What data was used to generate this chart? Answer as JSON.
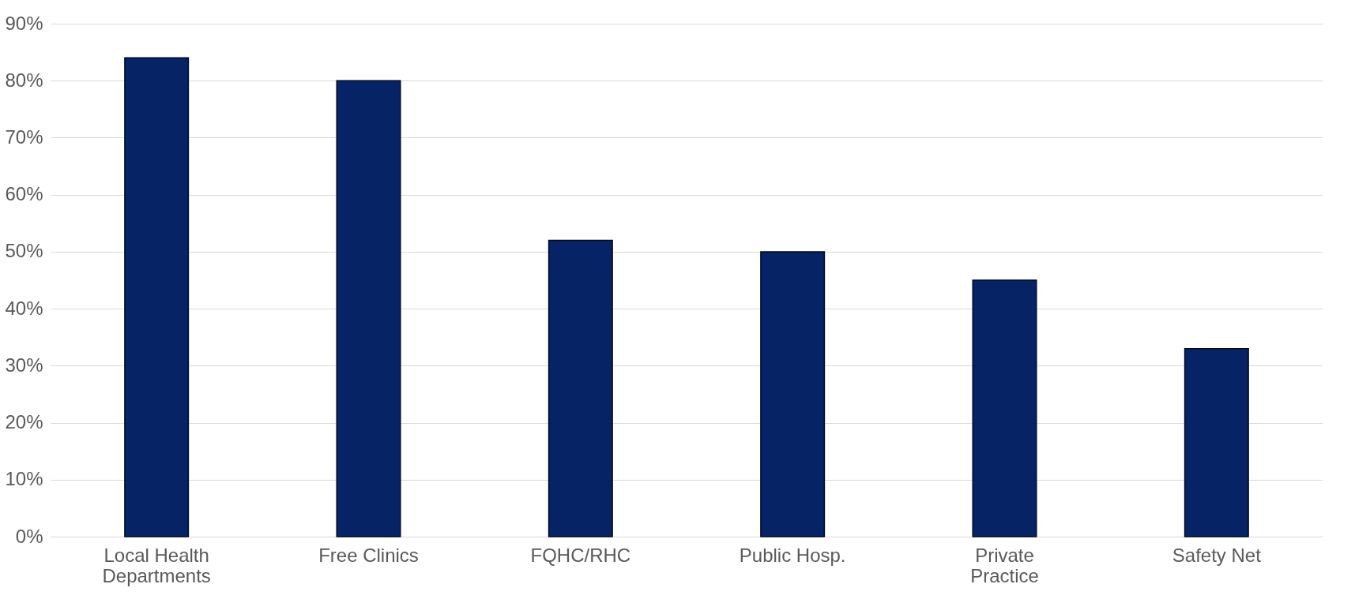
{
  "chart_data": {
    "type": "bar",
    "categories": [
      "Local Health Departments",
      "Free Clinics",
      "FQHC/RHC",
      "Public Hosp.",
      "Private Practice",
      "Safety Net"
    ],
    "values": [
      84,
      80,
      52,
      50,
      45,
      33
    ],
    "color": "#062366",
    "ylim": [
      0,
      90
    ],
    "yticks": [
      {
        "value": 0,
        "label": "0%"
      },
      {
        "value": 10,
        "label": "10%"
      },
      {
        "value": 20,
        "label": "20%"
      },
      {
        "value": 30,
        "label": "30%"
      },
      {
        "value": 40,
        "label": "40%"
      },
      {
        "value": 50,
        "label": "50%"
      },
      {
        "value": 60,
        "label": "60%"
      },
      {
        "value": 70,
        "label": "70%"
      },
      {
        "value": 80,
        "label": "80%"
      },
      {
        "value": 90,
        "label": "90%"
      }
    ],
    "grid": true
  }
}
